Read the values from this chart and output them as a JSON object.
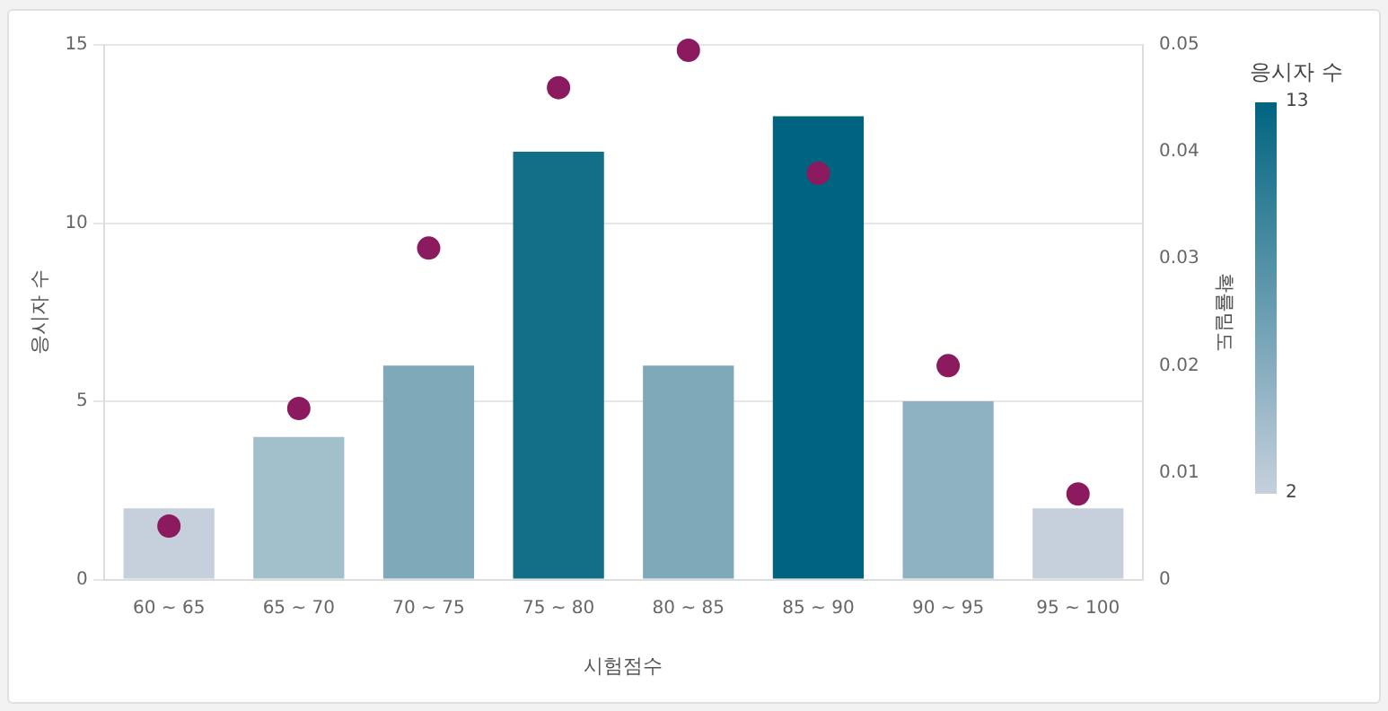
{
  "chart_data": {
    "type": "bar",
    "categories": [
      "60 ~ 65",
      "65 ~ 70",
      "70 ~ 75",
      "75 ~ 80",
      "80 ~ 85",
      "85 ~ 90",
      "90 ~ 95",
      "95 ~ 100"
    ],
    "series": [
      {
        "values": [
          2,
          4,
          6,
          12,
          6,
          13,
          5,
          2
        ],
        "colors": [
          "#c6d0dc",
          "#a2bfcc",
          "#7fa8b8",
          "#136e87",
          "#7fa8b8",
          "#006480",
          "#8fb2c1",
          "#c6d0dc"
        ]
      },
      {
        "type": "scatter",
        "axis": "y2",
        "color": "#8b1a5e",
        "values": [
          0.005,
          0.016,
          0.031,
          0.046,
          0.0495,
          0.038,
          0.02,
          0.008
        ]
      }
    ],
    "xlabel": "시험점수",
    "ylabel": "응시자 수",
    "y2label": "확률밀도",
    "ylim": [
      0,
      15
    ],
    "yticks": [
      0,
      5,
      10,
      15
    ],
    "y2lim": [
      0,
      0.05
    ],
    "y2ticks": [
      0,
      0.01,
      0.02,
      0.03,
      0.04,
      0.05
    ],
    "clabel": "응시자 수",
    "clim": [
      2,
      13
    ],
    "cticks": [
      2,
      13
    ],
    "grid": "y",
    "marker": "circle"
  }
}
